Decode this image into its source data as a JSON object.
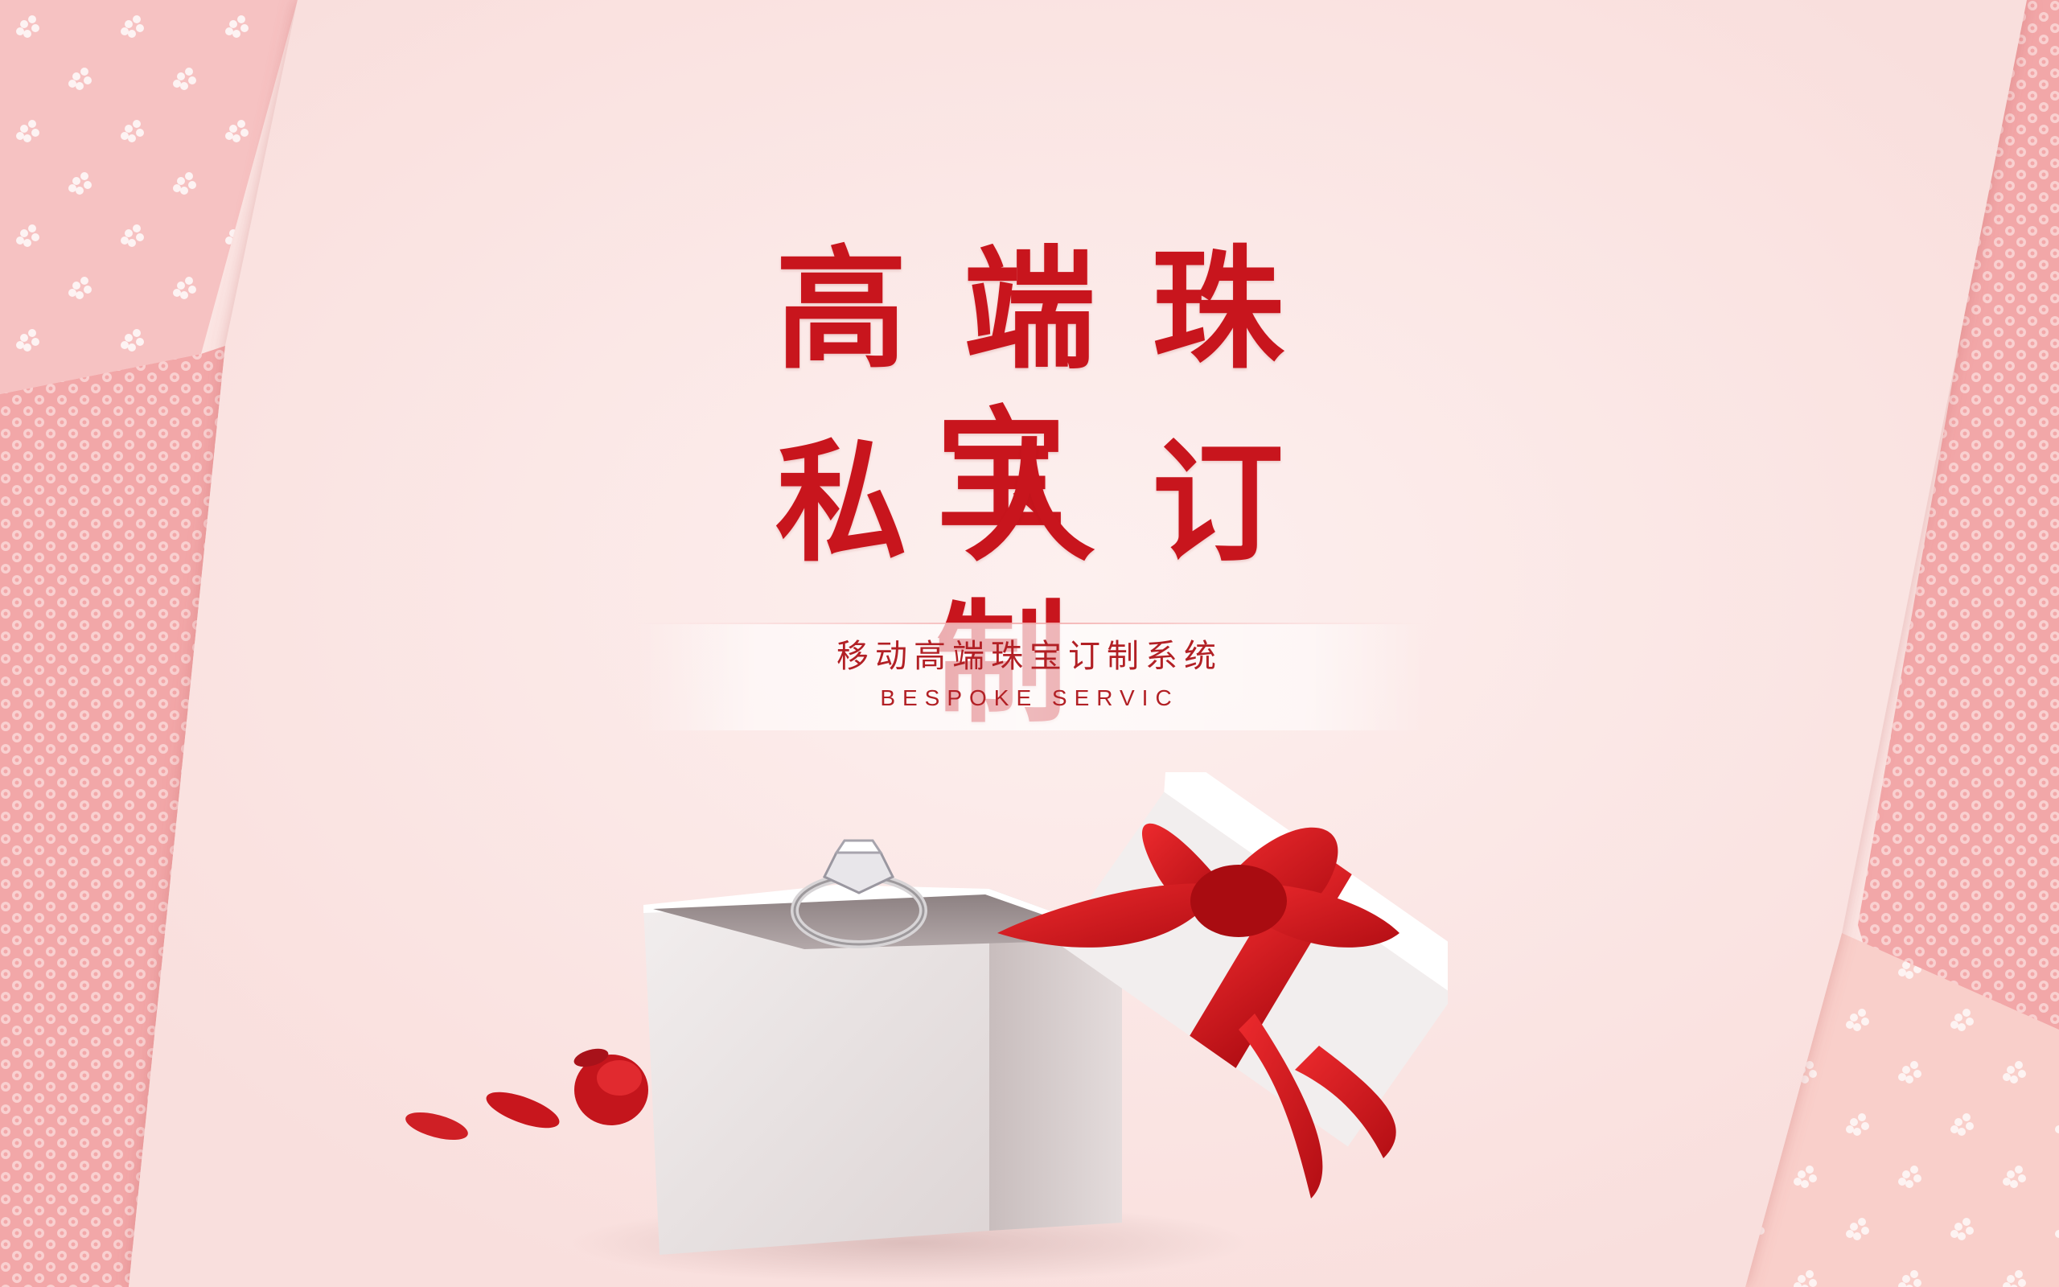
{
  "banner": {
    "title_line1": "高端珠宝",
    "title_line2": "私人订制",
    "subtitle_cn": "移动高端珠宝订制系统",
    "subtitle_en": "BESPOKE SERVIC"
  },
  "colors": {
    "title_red": "#c8151d",
    "background": "#fbe7e6",
    "ribbon_red": "#d2161c",
    "panel_pink": "#f4b3b3"
  },
  "decor": {
    "gift_box": "gift-box-with-ring-icon",
    "petals": "rose-petal-icon",
    "pattern": "flower-pattern-icon"
  }
}
